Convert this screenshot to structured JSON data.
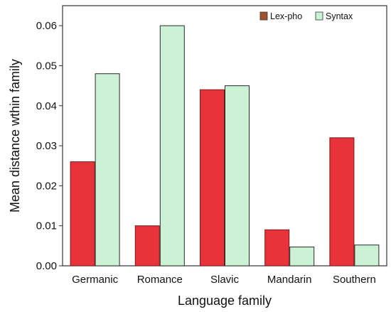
{
  "chart_data": {
    "type": "bar",
    "title": "",
    "xlabel": "Language family",
    "ylabel": "Mean distance wthin family",
    "categories": [
      "Germanic",
      "Romance",
      "Slavic",
      "Mandarin",
      "Southern"
    ],
    "series": [
      {
        "name": "Lex-pho",
        "values": [
          0.026,
          0.01,
          0.044,
          0.009,
          0.032
        ],
        "color": "#e8333a",
        "edge": "#7a1a1a"
      },
      {
        "name": "Syntax",
        "values": [
          0.048,
          0.06,
          0.045,
          0.0047,
          0.0052
        ],
        "color": "#ccf2d6",
        "edge": "#2a2a2a"
      }
    ],
    "ylim": [
      0,
      0.065
    ],
    "yticks": [
      "0.00",
      "0.01",
      "0.02",
      "0.03",
      "0.04",
      "0.05",
      "0.06"
    ],
    "grid": false,
    "legend_position": "top-right",
    "legend_swatches": {
      "Lex-pho": "#a0522d",
      "Syntax": "#ccf2d6"
    }
  }
}
